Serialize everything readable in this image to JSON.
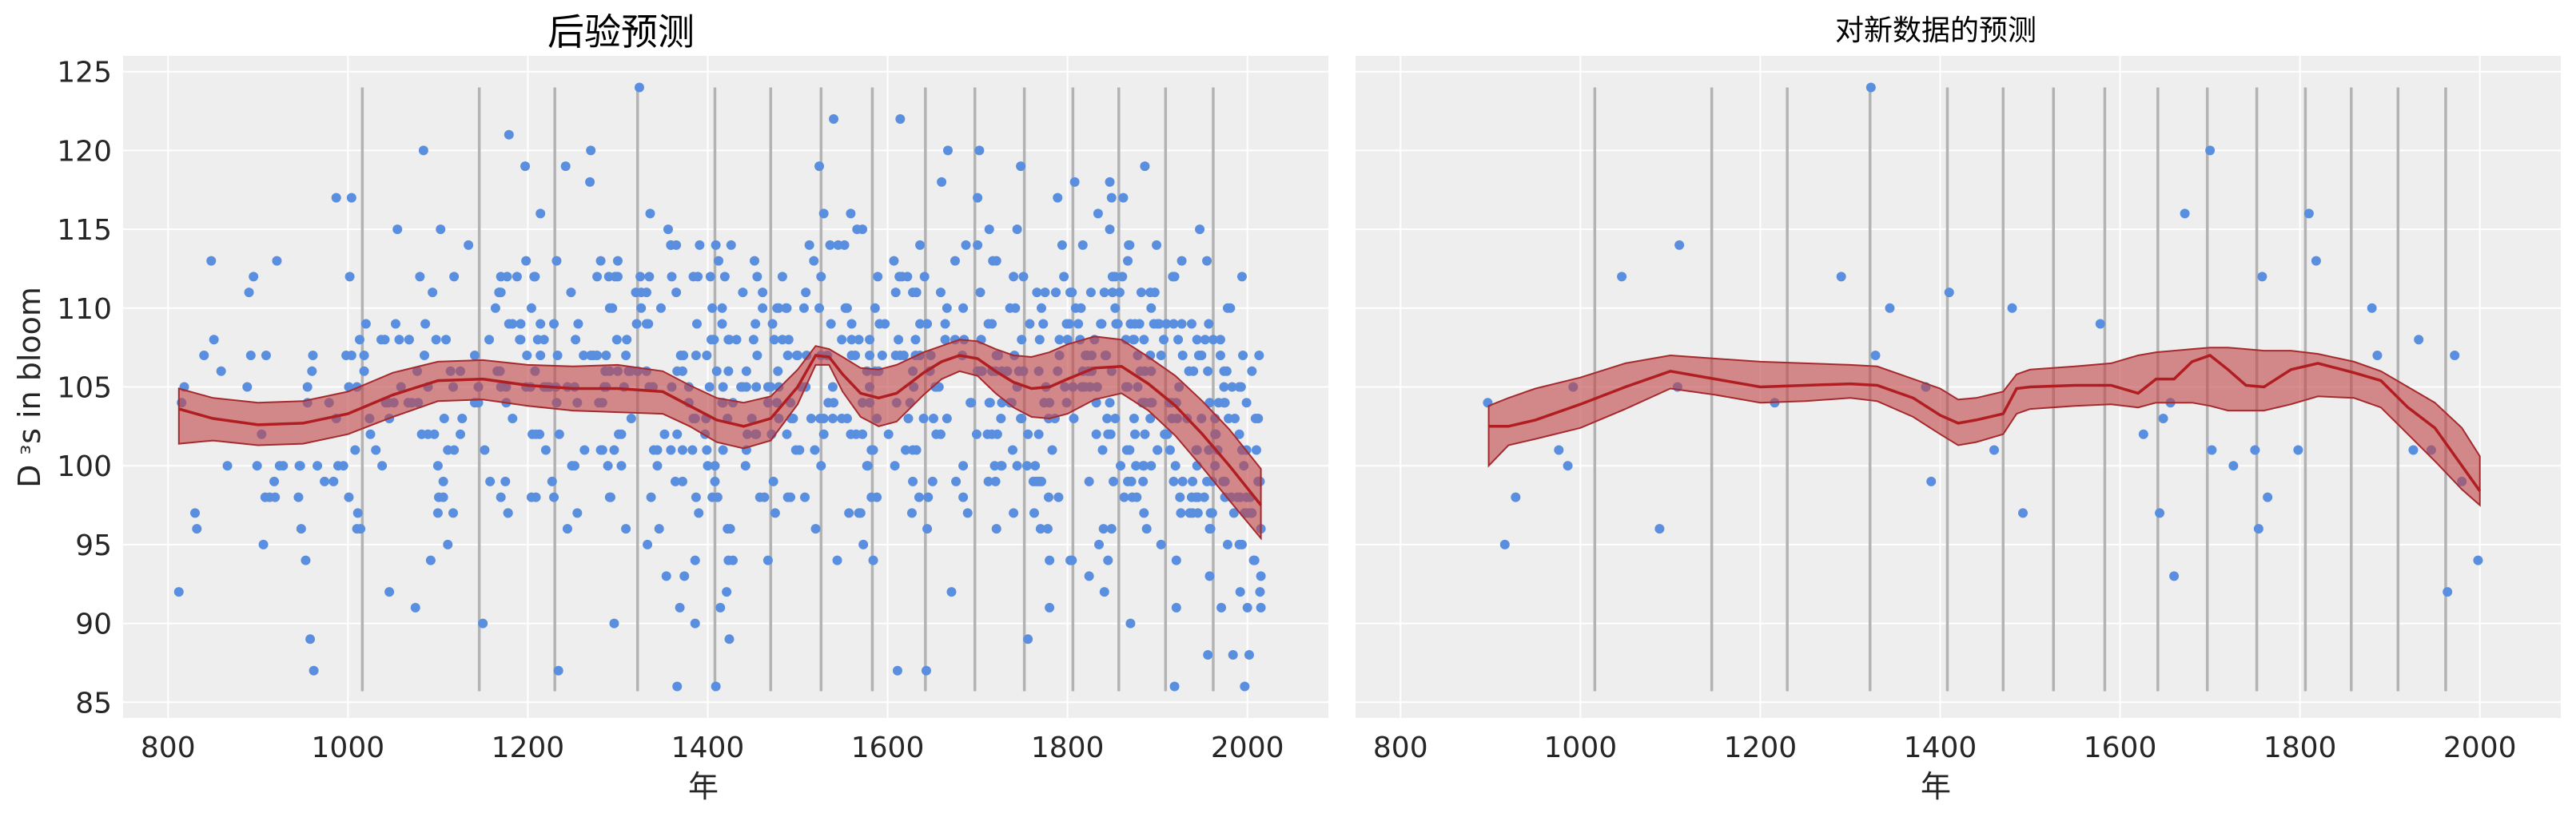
{
  "colors": {
    "background": "#eeeeee",
    "grid": "#ffffff",
    "points": "#5a8fe0",
    "band_fill": "#c0474b",
    "band_edge": "#a62a2d",
    "mean_line": "#b01e21",
    "knot_lines": "#b3b3b3"
  },
  "chart_data": [
    {
      "type": "scatter",
      "title": "后验预测",
      "xlabel": "年",
      "ylabel": "D ᵌs in bloom",
      "xlim": [
        750,
        2090
      ],
      "ylim": [
        84,
        126
      ],
      "xticks": [
        800,
        1000,
        1200,
        1400,
        1600,
        1800,
        2000
      ],
      "yticks": [
        85,
        90,
        95,
        100,
        105,
        110,
        115,
        120,
        125
      ],
      "grid": true,
      "knots": [
        1016,
        1146,
        1230,
        1322,
        1408,
        1470,
        1526,
        1583,
        1642,
        1697,
        1752,
        1806,
        1857,
        1909,
        1962
      ],
      "mean_line": {
        "x": [
          812,
          850,
          900,
          950,
          1000,
          1050,
          1100,
          1150,
          1200,
          1250,
          1300,
          1350,
          1380,
          1410,
          1440,
          1470,
          1500,
          1520,
          1535,
          1550,
          1570,
          1590,
          1610,
          1640,
          1660,
          1680,
          1700,
          1720,
          1740,
          1760,
          1780,
          1800,
          1830,
          1860,
          1890,
          1920,
          1950,
          1980,
          2015
        ],
        "y": [
          103.6,
          103.0,
          102.6,
          102.7,
          103.3,
          104.5,
          105.4,
          105.5,
          105.1,
          104.9,
          104.9,
          104.7,
          103.8,
          102.9,
          102.5,
          103.0,
          105.0,
          107.0,
          106.9,
          105.8,
          104.6,
          104.3,
          104.6,
          105.9,
          106.6,
          107.0,
          106.8,
          106.0,
          105.3,
          104.9,
          105.0,
          105.5,
          106.2,
          106.3,
          105.2,
          103.8,
          102.0,
          100.0,
          97.5
        ]
      },
      "band_upper": [
        104.9,
        104.3,
        104.0,
        104.1,
        104.7,
        105.9,
        106.6,
        106.7,
        106.4,
        106.3,
        106.4,
        106.0,
        105.1,
        104.3,
        104.0,
        104.4,
        106.1,
        107.6,
        107.4,
        106.9,
        106.2,
        106.1,
        106.4,
        107.2,
        107.6,
        108.0,
        107.9,
        107.4,
        107.0,
        106.9,
        107.2,
        107.7,
        108.2,
        108.0,
        106.9,
        105.7,
        104.1,
        102.3,
        99.8
      ],
      "band_lower": [
        101.4,
        101.6,
        101.3,
        101.4,
        102.0,
        103.1,
        104.1,
        104.2,
        103.8,
        103.5,
        103.4,
        103.3,
        102.5,
        101.5,
        101.1,
        101.6,
        103.9,
        106.4,
        106.4,
        104.7,
        103.1,
        102.5,
        102.8,
        104.5,
        105.5,
        106.0,
        105.7,
        104.6,
        103.7,
        103.1,
        103.0,
        103.3,
        104.2,
        104.6,
        103.5,
        101.9,
        99.9,
        97.8,
        95.4
      ],
      "seed": 24681,
      "n_points": 820,
      "anchor_points": [
        {
          "x": 812,
          "y": 92
        },
        {
          "x": 815,
          "y": 104
        },
        {
          "x": 818,
          "y": 105
        },
        {
          "x": 832,
          "y": 96
        },
        {
          "x": 851,
          "y": 108
        },
        {
          "x": 866,
          "y": 100
        },
        {
          "x": 958,
          "y": 89
        },
        {
          "x": 962,
          "y": 87
        },
        {
          "x": 1004,
          "y": 117
        },
        {
          "x": 1084,
          "y": 120
        },
        {
          "x": 1150,
          "y": 90
        },
        {
          "x": 1197,
          "y": 119
        },
        {
          "x": 1234,
          "y": 87
        },
        {
          "x": 1270,
          "y": 120
        },
        {
          "x": 1324,
          "y": 124
        },
        {
          "x": 1366,
          "y": 86
        },
        {
          "x": 1409,
          "y": 86
        },
        {
          "x": 1414,
          "y": 91
        },
        {
          "x": 1540,
          "y": 122
        },
        {
          "x": 1611,
          "y": 87
        },
        {
          "x": 1614,
          "y": 122
        },
        {
          "x": 1643,
          "y": 87
        },
        {
          "x": 1702,
          "y": 120
        },
        {
          "x": 1756,
          "y": 89
        },
        {
          "x": 1780,
          "y": 91
        },
        {
          "x": 1984,
          "y": 88
        },
        {
          "x": 2010,
          "y": 101
        },
        {
          "x": 2015,
          "y": 93
        }
      ]
    },
    {
      "type": "scatter",
      "title": "对新数据的预测",
      "xlabel": "年",
      "ylabel": "",
      "xlim": [
        750,
        2090
      ],
      "ylim": [
        84,
        126
      ],
      "xticks": [
        800,
        1000,
        1200,
        1400,
        1600,
        1800,
        2000
      ],
      "yticks": [
        85,
        90,
        95,
        100,
        105,
        110,
        115,
        120,
        125
      ],
      "grid": true,
      "knots": [
        1016,
        1146,
        1230,
        1322,
        1408,
        1470,
        1526,
        1583,
        1642,
        1697,
        1752,
        1806,
        1857,
        1909,
        1962
      ],
      "points": [
        {
          "x": 897,
          "y": 104
        },
        {
          "x": 916,
          "y": 95
        },
        {
          "x": 928,
          "y": 98
        },
        {
          "x": 976,
          "y": 101
        },
        {
          "x": 986,
          "y": 100
        },
        {
          "x": 992,
          "y": 105
        },
        {
          "x": 1046,
          "y": 112
        },
        {
          "x": 1088,
          "y": 96
        },
        {
          "x": 1108,
          "y": 105
        },
        {
          "x": 1110,
          "y": 114
        },
        {
          "x": 1216,
          "y": 104
        },
        {
          "x": 1290,
          "y": 112
        },
        {
          "x": 1323,
          "y": 124
        },
        {
          "x": 1328,
          "y": 107
        },
        {
          "x": 1344,
          "y": 110
        },
        {
          "x": 1384,
          "y": 105
        },
        {
          "x": 1390,
          "y": 99
        },
        {
          "x": 1410,
          "y": 111
        },
        {
          "x": 1460,
          "y": 101
        },
        {
          "x": 1480,
          "y": 110
        },
        {
          "x": 1492,
          "y": 97
        },
        {
          "x": 1578,
          "y": 109
        },
        {
          "x": 1626,
          "y": 102
        },
        {
          "x": 1644,
          "y": 97
        },
        {
          "x": 1648,
          "y": 103
        },
        {
          "x": 1656,
          "y": 104
        },
        {
          "x": 1660,
          "y": 93
        },
        {
          "x": 1672,
          "y": 116
        },
        {
          "x": 1700,
          "y": 120
        },
        {
          "x": 1702,
          "y": 101
        },
        {
          "x": 1726,
          "y": 100
        },
        {
          "x": 1750,
          "y": 101
        },
        {
          "x": 1754,
          "y": 96
        },
        {
          "x": 1758,
          "y": 112
        },
        {
          "x": 1764,
          "y": 98
        },
        {
          "x": 1798,
          "y": 101
        },
        {
          "x": 1810,
          "y": 116
        },
        {
          "x": 1818,
          "y": 113
        },
        {
          "x": 1880,
          "y": 110
        },
        {
          "x": 1886,
          "y": 107
        },
        {
          "x": 1926,
          "y": 101
        },
        {
          "x": 1932,
          "y": 108
        },
        {
          "x": 1946,
          "y": 101
        },
        {
          "x": 1964,
          "y": 92
        },
        {
          "x": 1972,
          "y": 107
        },
        {
          "x": 1980,
          "y": 99
        },
        {
          "x": 1998,
          "y": 94
        }
      ],
      "mean_line": {
        "x": [
          898,
          920,
          950,
          1000,
          1050,
          1100,
          1150,
          1200,
          1250,
          1300,
          1330,
          1370,
          1400,
          1420,
          1440,
          1470,
          1485,
          1500,
          1550,
          1590,
          1620,
          1640,
          1660,
          1680,
          1700,
          1720,
          1740,
          1760,
          1790,
          1820,
          1860,
          1890,
          1920,
          1950,
          1980,
          2000
        ],
        "y": [
          102.5,
          102.5,
          102.9,
          103.9,
          105.0,
          106.0,
          105.5,
          105.0,
          105.1,
          105.2,
          105.1,
          104.3,
          103.2,
          102.7,
          102.9,
          103.3,
          104.9,
          105.0,
          105.1,
          105.1,
          104.6,
          105.5,
          105.5,
          106.6,
          107.0,
          106.1,
          105.1,
          105.0,
          106.1,
          106.5,
          105.9,
          105.4,
          103.7,
          102.4,
          100.0,
          98.4
        ]
      },
      "band_upper": [
        103.8,
        104.3,
        104.9,
        105.6,
        106.5,
        107.0,
        106.8,
        106.6,
        106.5,
        106.4,
        106.3,
        105.5,
        104.9,
        104.2,
        104.3,
        104.7,
        105.8,
        106.1,
        106.3,
        106.5,
        107.0,
        107.2,
        107.3,
        107.4,
        107.5,
        107.5,
        107.4,
        107.3,
        107.3,
        107.1,
        106.6,
        106.0,
        105.0,
        104.0,
        102.4,
        100.6
      ],
      "band_lower": [
        100.0,
        101.3,
        101.7,
        102.4,
        103.6,
        104.9,
        104.5,
        104.0,
        104.1,
        104.3,
        104.1,
        103.1,
        102.0,
        101.3,
        101.5,
        102.0,
        103.3,
        103.6,
        103.8,
        103.9,
        103.7,
        104.0,
        104.0,
        104.0,
        103.8,
        103.5,
        103.5,
        103.5,
        103.9,
        104.4,
        104.3,
        103.7,
        102.0,
        100.3,
        98.5,
        97.5
      ]
    }
  ]
}
